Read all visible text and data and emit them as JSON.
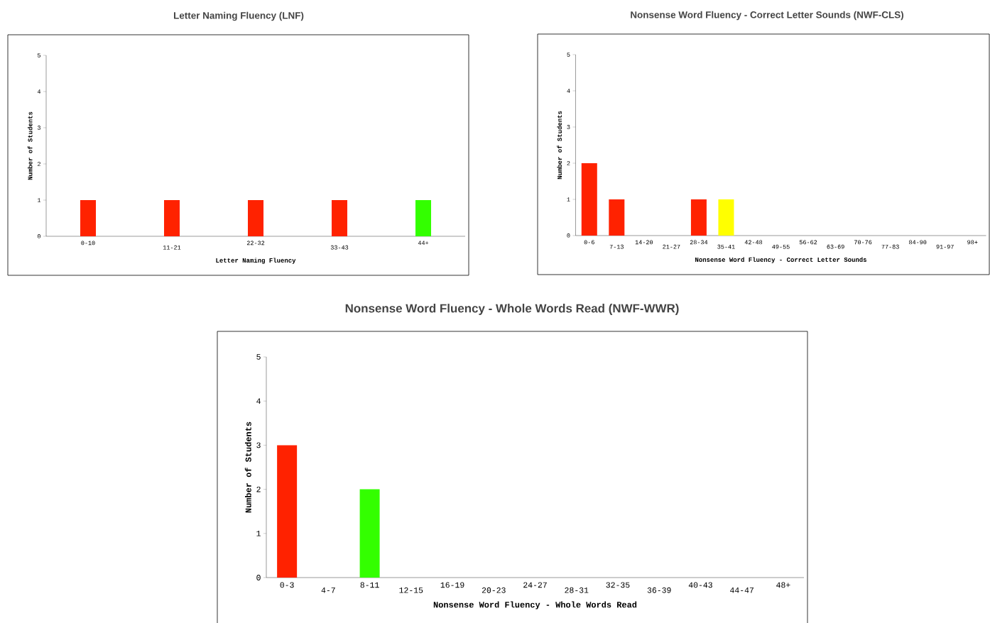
{
  "chart_data": [
    {
      "type": "bar",
      "title": "Letter Naming Fluency (LNF)",
      "xlabel": "Letter Naming Fluency",
      "ylabel": "Number of Students",
      "categories": [
        "0-10",
        "11-21",
        "22-32",
        "33-43",
        "44+"
      ],
      "values": [
        1,
        1,
        1,
        1,
        1
      ],
      "colors": [
        "#ff2200",
        "#ff2200",
        "#ff2200",
        "#ff2200",
        "#33ff00"
      ],
      "ylim": [
        0,
        5
      ],
      "yticks": [
        0,
        1,
        2,
        3,
        4,
        5
      ]
    },
    {
      "type": "bar",
      "title": "Nonsense Word Fluency - Correct Letter Sounds (NWF-CLS)",
      "xlabel": "Nonsense Word Fluency - Correct Letter Sounds",
      "ylabel": "Number of Students",
      "categories": [
        "0-6",
        "7-13",
        "14-20",
        "21-27",
        "28-34",
        "35-41",
        "42-48",
        "49-55",
        "56-62",
        "63-69",
        "70-76",
        "77-83",
        "84-90",
        "91-97",
        "98+"
      ],
      "values": [
        2,
        1,
        0,
        0,
        1,
        1,
        0,
        0,
        0,
        0,
        0,
        0,
        0,
        0,
        0
      ],
      "colors": [
        "#ff2200",
        "#ff2200",
        "#ff2200",
        "#ff2200",
        "#ff2200",
        "#ffff00",
        "#ff2200",
        "#ff2200",
        "#ff2200",
        "#ff2200",
        "#ff2200",
        "#ff2200",
        "#ff2200",
        "#ff2200",
        "#ff2200"
      ],
      "ylim": [
        0,
        5
      ],
      "yticks": [
        0,
        1,
        2,
        3,
        4,
        5
      ]
    },
    {
      "type": "bar",
      "title": "Nonsense Word Fluency - Whole Words Read (NWF-WWR)",
      "xlabel": "Nonsense Word Fluency - Whole Words Read",
      "ylabel": "Number of Students",
      "categories": [
        "0-3",
        "4-7",
        "8-11",
        "12-15",
        "16-19",
        "20-23",
        "24-27",
        "28-31",
        "32-35",
        "36-39",
        "40-43",
        "44-47",
        "48+"
      ],
      "values": [
        3,
        0,
        2,
        0,
        0,
        0,
        0,
        0,
        0,
        0,
        0,
        0,
        0
      ],
      "colors": [
        "#ff2200",
        "#ff2200",
        "#33ff00",
        "#ff2200",
        "#ff2200",
        "#ff2200",
        "#ff2200",
        "#ff2200",
        "#ff2200",
        "#ff2200",
        "#ff2200",
        "#ff2200",
        "#ff2200"
      ],
      "ylim": [
        0,
        5
      ],
      "yticks": [
        0,
        1,
        2,
        3,
        4,
        5
      ]
    }
  ]
}
